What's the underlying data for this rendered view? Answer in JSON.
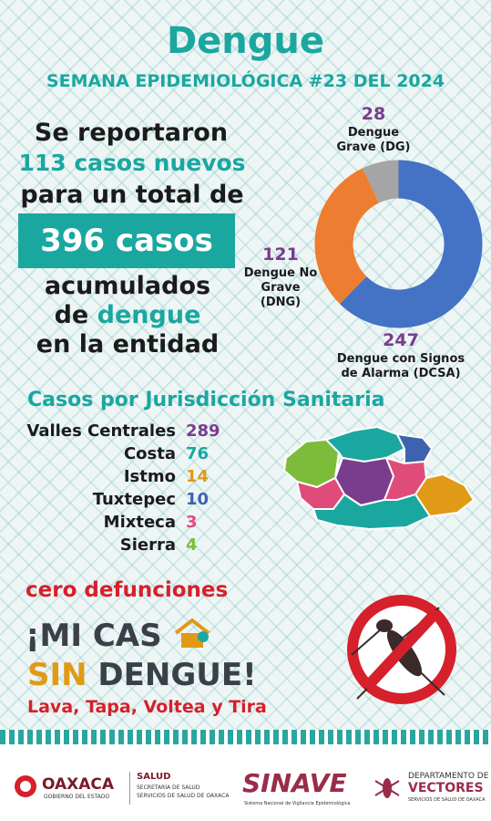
{
  "header": {
    "title": "Dengue",
    "subtitle": "SEMANA EPIDEMIOLÓGICA #23 DEL 2024"
  },
  "summary": {
    "line1": "Se reportaron",
    "line2": "113 casos nuevos",
    "line3": "para un total de",
    "total_box": "396 casos",
    "line4": "acumulados",
    "line5_prefix": "de",
    "line5_highlight": "dengue",
    "line6": "en la entidad"
  },
  "donut_labels": {
    "dg_value": "28",
    "dg_label_1": "Dengue",
    "dg_label_2": "Grave (DG)",
    "dng_value": "121",
    "dng_label_1": "Dengue No",
    "dng_label_2": "Grave",
    "dng_label_3": "(DNG)",
    "dcsa_value": "247",
    "dcsa_label_1": "Dengue con Signos",
    "dcsa_label_2": "de Alarma (DCSA)"
  },
  "chart_data": {
    "type": "pie",
    "categories": [
      "Dengue con Signos de Alarma (DCSA)",
      "Dengue No Grave (DNG)",
      "Dengue Grave (DG)"
    ],
    "values": [
      247,
      121,
      28
    ],
    "colors": [
      "#4472c4",
      "#ed7d31",
      "#a5a5a5"
    ],
    "donut": true
  },
  "jurisdictions": {
    "title": "Casos por Jurisdicción Sanitaria",
    "rows": [
      {
        "name": "Valles Centrales",
        "value": "289",
        "color": "#7a3c8c"
      },
      {
        "name": "Costa",
        "value": "76",
        "color": "#1aa7a0"
      },
      {
        "name": "Istmo",
        "value": "14",
        "color": "#e09a18"
      },
      {
        "name": "Tuxtepec",
        "value": "10",
        "color": "#3d63b0"
      },
      {
        "name": "Mixteca",
        "value": "3",
        "color": "#e04c7a"
      },
      {
        "name": "Sierra",
        "value": "4",
        "color": "#7cbc3a"
      }
    ]
  },
  "campaign": {
    "cero": "cero defunciones",
    "mi_casa_1": "¡MI CAS",
    "sin": "SIN",
    "dengue": " DENGUE!",
    "slogan": "Lava, Tapa, Voltea y Tira"
  },
  "footer": {
    "oaxaca": "OAXACA",
    "oaxaca_sub": "GOBIERNO DEL ESTADO",
    "salud": "SALUD",
    "salud_sub1": "SECRETARÍA DE SALUD",
    "salud_sub2": "SERVICIOS DE SALUD DE OAXACA",
    "sinave": "SINAVE",
    "sinave_sub": "Sistema Nacional de Vigilancia Epidemiológica",
    "depto_1": "DEPARTAMENTO DE",
    "depto_2": "VECTORES",
    "depto_sub": "SERVICIOS DE SALUD DE OAXACA"
  },
  "colors": {
    "teal": "#1aa7a0",
    "purple": "#7a3c8c",
    "red": "#d6202b",
    "orange": "#e09a18"
  }
}
